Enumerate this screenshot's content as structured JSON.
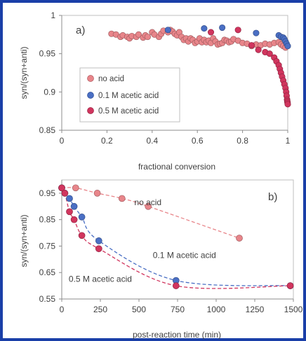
{
  "frame_color": "#1a3fa8",
  "chart_data": [
    {
      "type": "scatter",
      "panel_label": "a)",
      "xlabel": "fractional conversion",
      "ylabel": "syn/(syn+anti)",
      "xlim": [
        0,
        1
      ],
      "ylim": [
        0.85,
        1
      ],
      "x_ticks": [
        0,
        0.2,
        0.4,
        0.6,
        0.8,
        1
      ],
      "y_ticks": [
        0.85,
        0.9,
        0.95,
        1
      ],
      "x_tick_labels": [
        "0",
        "0.2",
        "0.4",
        "0.6",
        "0.8",
        "1"
      ],
      "y_tick_labels": [
        "0.85",
        "0.9",
        "0.95",
        "1"
      ],
      "grid": false,
      "legend_position": "bottom-left",
      "series": [
        {
          "name": "no acid",
          "color": "#e8858a",
          "x": [
            0.22,
            0.24,
            0.26,
            0.27,
            0.29,
            0.3,
            0.31,
            0.33,
            0.34,
            0.36,
            0.37,
            0.38,
            0.4,
            0.41,
            0.43,
            0.44,
            0.45,
            0.47,
            0.48,
            0.49,
            0.5,
            0.51,
            0.52,
            0.53,
            0.54,
            0.55,
            0.56,
            0.57,
            0.58,
            0.59,
            0.6,
            0.61,
            0.62,
            0.63,
            0.64,
            0.65,
            0.66,
            0.67,
            0.68,
            0.69,
            0.7,
            0.71,
            0.72,
            0.73,
            0.74,
            0.75,
            0.76,
            0.78,
            0.8,
            0.82,
            0.84,
            0.86,
            0.88,
            0.9,
            0.92,
            0.94,
            0.96,
            0.97,
            0.98,
            0.99
          ],
          "y": [
            0.976,
            0.975,
            0.972,
            0.974,
            0.972,
            0.97,
            0.973,
            0.972,
            0.975,
            0.971,
            0.974,
            0.972,
            0.978,
            0.975,
            0.972,
            0.976,
            0.98,
            0.978,
            0.981,
            0.979,
            0.976,
            0.974,
            0.978,
            0.972,
            0.968,
            0.97,
            0.966,
            0.97,
            0.968,
            0.964,
            0.966,
            0.97,
            0.965,
            0.968,
            0.965,
            0.967,
            0.964,
            0.97,
            0.966,
            0.962,
            0.963,
            0.964,
            0.968,
            0.967,
            0.965,
            0.966,
            0.969,
            0.967,
            0.964,
            0.963,
            0.96,
            0.962,
            0.961,
            0.963,
            0.962,
            0.964,
            0.965,
            0.962,
            0.96,
            0.958
          ]
        },
        {
          "name": "0.1 M acetic acid",
          "color": "#4a6fc4",
          "x": [
            0.47,
            0.63,
            0.71,
            0.86,
            0.96,
            0.97,
            0.98,
            0.985,
            0.99,
            0.995,
            1.0
          ],
          "y": [
            0.981,
            0.983,
            0.984,
            0.977,
            0.974,
            0.972,
            0.971,
            0.969,
            0.966,
            0.963,
            0.96
          ]
        },
        {
          "name": "0.5 M acetic acid",
          "color": "#d1355e",
          "x": [
            0.66,
            0.78,
            0.84,
            0.87,
            0.9,
            0.92,
            0.94,
            0.95,
            0.96,
            0.965,
            0.97,
            0.975,
            0.98,
            0.985,
            0.99,
            0.993,
            0.995,
            0.997,
            0.998,
            0.999,
            1.0
          ],
          "y": [
            0.978,
            0.981,
            0.961,
            0.955,
            0.952,
            0.95,
            0.945,
            0.94,
            0.935,
            0.93,
            0.925,
            0.92,
            0.915,
            0.91,
            0.905,
            0.9,
            0.895,
            0.89,
            0.888,
            0.886,
            0.884
          ]
        }
      ]
    },
    {
      "type": "line",
      "panel_label": "b)",
      "xlabel": "post-reaction time (min)",
      "ylabel": "syn/(syn+anti)",
      "xlim": [
        0,
        1500
      ],
      "ylim": [
        0.55,
        1.0
      ],
      "x_ticks": [
        0,
        250,
        500,
        750,
        1000,
        1250,
        1500
      ],
      "y_ticks": [
        0.55,
        0.65,
        0.75,
        0.85,
        0.95
      ],
      "x_tick_labels": [
        "0",
        "250",
        "500",
        "750",
        "1000",
        "1250",
        "1500"
      ],
      "y_tick_labels": [
        "0.55",
        "0.65",
        "0.75",
        "0.85",
        "0.95"
      ],
      "grid": false,
      "series": [
        {
          "name": "no acid",
          "color": "#e8858a",
          "line_color": "#e8858a",
          "x": [
            0,
            90,
            230,
            390,
            560,
            1150
          ],
          "y": [
            0.97,
            0.97,
            0.95,
            0.93,
            0.9,
            0.78
          ],
          "label_data_pos": [
            470,
            0.905
          ]
        },
        {
          "name": "0.1 M acetic acid",
          "color": "#4a6fc4",
          "line_color": "#4a6fc4",
          "x": [
            0,
            20,
            50,
            80,
            130,
            240,
            740,
            1480
          ],
          "y": [
            0.97,
            0.95,
            0.93,
            0.9,
            0.86,
            0.77,
            0.62,
            0.6
          ],
          "label_data_pos": [
            590,
            0.705
          ]
        },
        {
          "name": "0.5 M acetic acid",
          "color": "#d1355e",
          "line_color": "#d1355e",
          "x": [
            0,
            20,
            50,
            80,
            130,
            240,
            740,
            1480
          ],
          "y": [
            0.97,
            0.95,
            0.88,
            0.85,
            0.79,
            0.74,
            0.6,
            0.6
          ],
          "label_data_pos": [
            45,
            0.615
          ]
        }
      ]
    }
  ]
}
